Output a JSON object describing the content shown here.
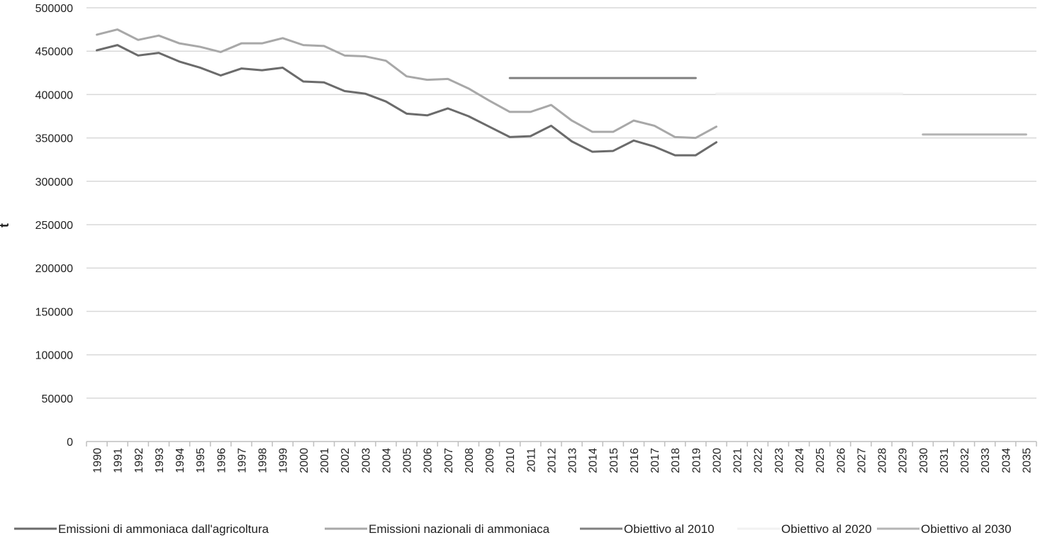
{
  "chart_data": {
    "type": "line",
    "ylabel": "t",
    "xlabel": "",
    "ylim": [
      0,
      500000
    ],
    "y_ticks": [
      0,
      50000,
      100000,
      150000,
      200000,
      250000,
      300000,
      350000,
      400000,
      450000,
      500000
    ],
    "y_tick_labels": [
      "0",
      "50000",
      "100000",
      "150000",
      "200000",
      "250000",
      "300000",
      "350000",
      "400000",
      "450000",
      "500000"
    ],
    "categories": [
      "1990",
      "1991",
      "1992",
      "1993",
      "1994",
      "1995",
      "1996",
      "1997",
      "1998",
      "1999",
      "2000",
      "2001",
      "2002",
      "2003",
      "2004",
      "2005",
      "2006",
      "2007",
      "2008",
      "2009",
      "2010",
      "2011",
      "2012",
      "2013",
      "2014",
      "2015",
      "2016",
      "2017",
      "2018",
      "2019",
      "2020",
      "2021",
      "2022",
      "2023",
      "2024",
      "2025",
      "2026",
      "2027",
      "2028",
      "2029",
      "2030",
      "2031",
      "2032",
      "2033",
      "2034",
      "2035"
    ],
    "grid": "horizontal",
    "legend_position": "bottom",
    "series": [
      {
        "name": "Emissioni di ammoniaca dall'agricoltura",
        "color": "#6b6b6b",
        "values": [
          451000,
          457000,
          445000,
          448000,
          438000,
          431000,
          422000,
          430000,
          428000,
          431000,
          415000,
          414000,
          404000,
          401000,
          392000,
          378000,
          376000,
          384000,
          375000,
          363000,
          351000,
          352000,
          364000,
          346000,
          334000,
          335000,
          347000,
          340000,
          330000,
          330000,
          345000,
          null,
          null,
          null,
          null,
          null,
          null,
          null,
          null,
          null,
          null,
          null,
          null,
          null,
          null,
          null
        ]
      },
      {
        "name": "Emissioni nazionali di ammoniaca",
        "color": "#a8a8a8",
        "values": [
          469000,
          475000,
          463000,
          468000,
          459000,
          455000,
          449000,
          459000,
          459000,
          465000,
          457000,
          456000,
          445000,
          444000,
          439000,
          421000,
          417000,
          418000,
          407000,
          393000,
          380000,
          380000,
          388000,
          370000,
          357000,
          357000,
          370000,
          364000,
          351000,
          350000,
          363000,
          null,
          null,
          null,
          null,
          null,
          null,
          null,
          null,
          null,
          null,
          null,
          null,
          null,
          null,
          null
        ]
      },
      {
        "name": "Obiettivo al 2010",
        "color": "#808080",
        "values": [
          null,
          null,
          null,
          null,
          null,
          null,
          null,
          null,
          null,
          null,
          null,
          null,
          null,
          null,
          null,
          null,
          null,
          null,
          null,
          null,
          419000,
          419000,
          419000,
          419000,
          419000,
          419000,
          419000,
          419000,
          419000,
          419000,
          null,
          null,
          null,
          null,
          null,
          null,
          null,
          null,
          null,
          null,
          null,
          null,
          null,
          null,
          null,
          null
        ]
      },
      {
        "name": "Obiettivo al 2020",
        "color": "#f2f2f2",
        "values": [
          null,
          null,
          null,
          null,
          null,
          null,
          null,
          null,
          null,
          null,
          null,
          null,
          null,
          null,
          null,
          null,
          null,
          null,
          null,
          null,
          null,
          null,
          null,
          null,
          null,
          null,
          null,
          null,
          null,
          null,
          401000,
          401000,
          401000,
          401000,
          401000,
          401000,
          401000,
          401000,
          401000,
          401000,
          null,
          null,
          null,
          null,
          null,
          null
        ]
      },
      {
        "name": "Obiettivo al 2030",
        "color": "#b4b4b4",
        "values": [
          null,
          null,
          null,
          null,
          null,
          null,
          null,
          null,
          null,
          null,
          null,
          null,
          null,
          null,
          null,
          null,
          null,
          null,
          null,
          null,
          null,
          null,
          null,
          null,
          null,
          null,
          null,
          null,
          null,
          null,
          null,
          null,
          null,
          null,
          null,
          null,
          null,
          null,
          null,
          null,
          354000,
          354000,
          354000,
          354000,
          354000,
          354000
        ]
      }
    ]
  }
}
